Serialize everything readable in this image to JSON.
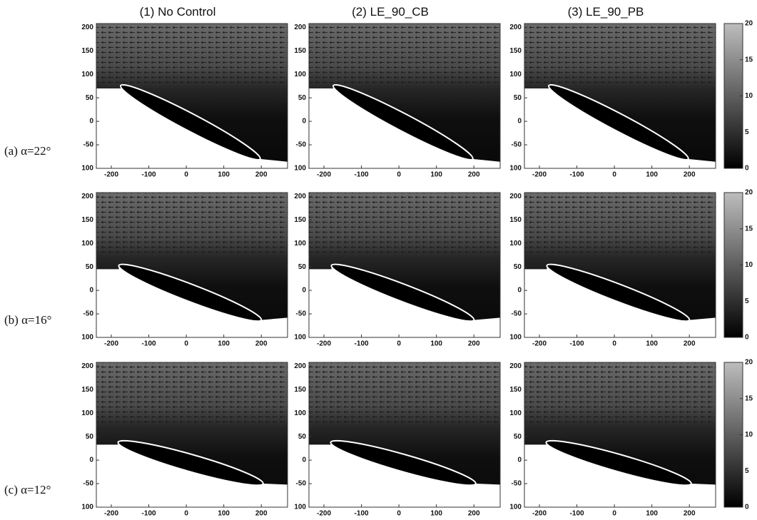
{
  "columns": [
    "(1) No Control",
    "(2) LE_90_CB",
    "(3) LE_90_PB"
  ],
  "rows": [
    "(a) α=22°",
    "(b) α=16°",
    "(c) α=12°"
  ],
  "axes": {
    "xlim": [
      -240,
      270
    ],
    "ylim": [
      -100,
      208
    ],
    "xticks": [
      -200,
      -100,
      0,
      100,
      200
    ],
    "yticks": [
      200,
      150,
      100,
      50,
      0,
      -50,
      {
        "value": -100,
        "label": "100"
      }
    ]
  },
  "colorbar": {
    "lim": [
      0,
      20
    ],
    "ticks": [
      0,
      5,
      10,
      15,
      20
    ]
  }
}
